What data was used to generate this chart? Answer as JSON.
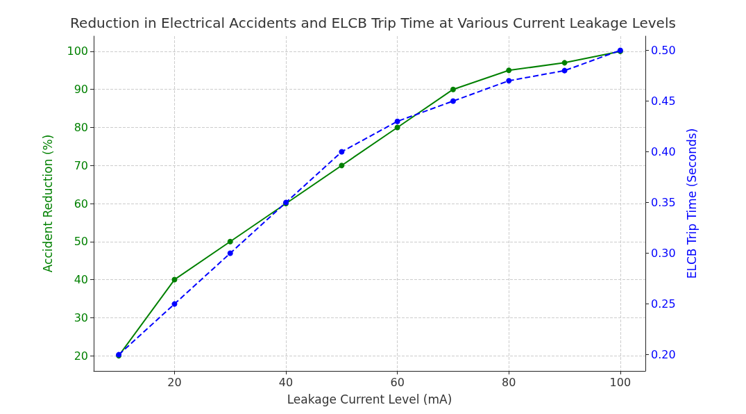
{
  "chart_data": {
    "type": "line",
    "title": "Reduction in Electrical Accidents and ELCB Trip Time at Various Current Leakage Levels",
    "xlabel": "Leakage Current Level (mA)",
    "ylabel": "Accident Reduction (%)",
    "y2label": "ELCB Trip Time (Seconds)",
    "x": [
      10,
      20,
      30,
      40,
      50,
      60,
      70,
      80,
      90,
      100
    ],
    "series": [
      {
        "color": "#008000",
        "values": [
          20,
          40,
          50,
          60,
          70,
          80,
          90,
          95,
          97,
          100
        ],
        "line_style": "solid"
      },
      {
        "color": "#0000ff",
        "values": [
          0.2,
          0.25,
          0.3,
          0.35,
          0.4,
          0.43,
          0.45,
          0.47,
          0.48,
          0.5
        ],
        "line_style": "dashed",
        "axis": "y2"
      }
    ],
    "xlim": [
      5.5,
      104.5
    ],
    "xticks": [
      20,
      40,
      60,
      80,
      100
    ],
    "ylim": [
      16,
      104
    ],
    "yticks": [
      20,
      30,
      40,
      50,
      60,
      70,
      80,
      90,
      100
    ],
    "y2lim": [
      0.184,
      0.514
    ],
    "y2ticks": [
      {
        "value": 0.2,
        "label": "0.20"
      },
      {
        "value": 0.25,
        "label": "0.25"
      },
      {
        "value": 0.3,
        "label": "0.30"
      },
      {
        "value": 0.35,
        "label": "0.35"
      },
      {
        "value": 0.4,
        "label": "0.40"
      },
      {
        "value": 0.45,
        "label": "0.45"
      },
      {
        "value": 0.5,
        "label": "0.50"
      }
    ],
    "grid": true,
    "marker": "circle"
  }
}
